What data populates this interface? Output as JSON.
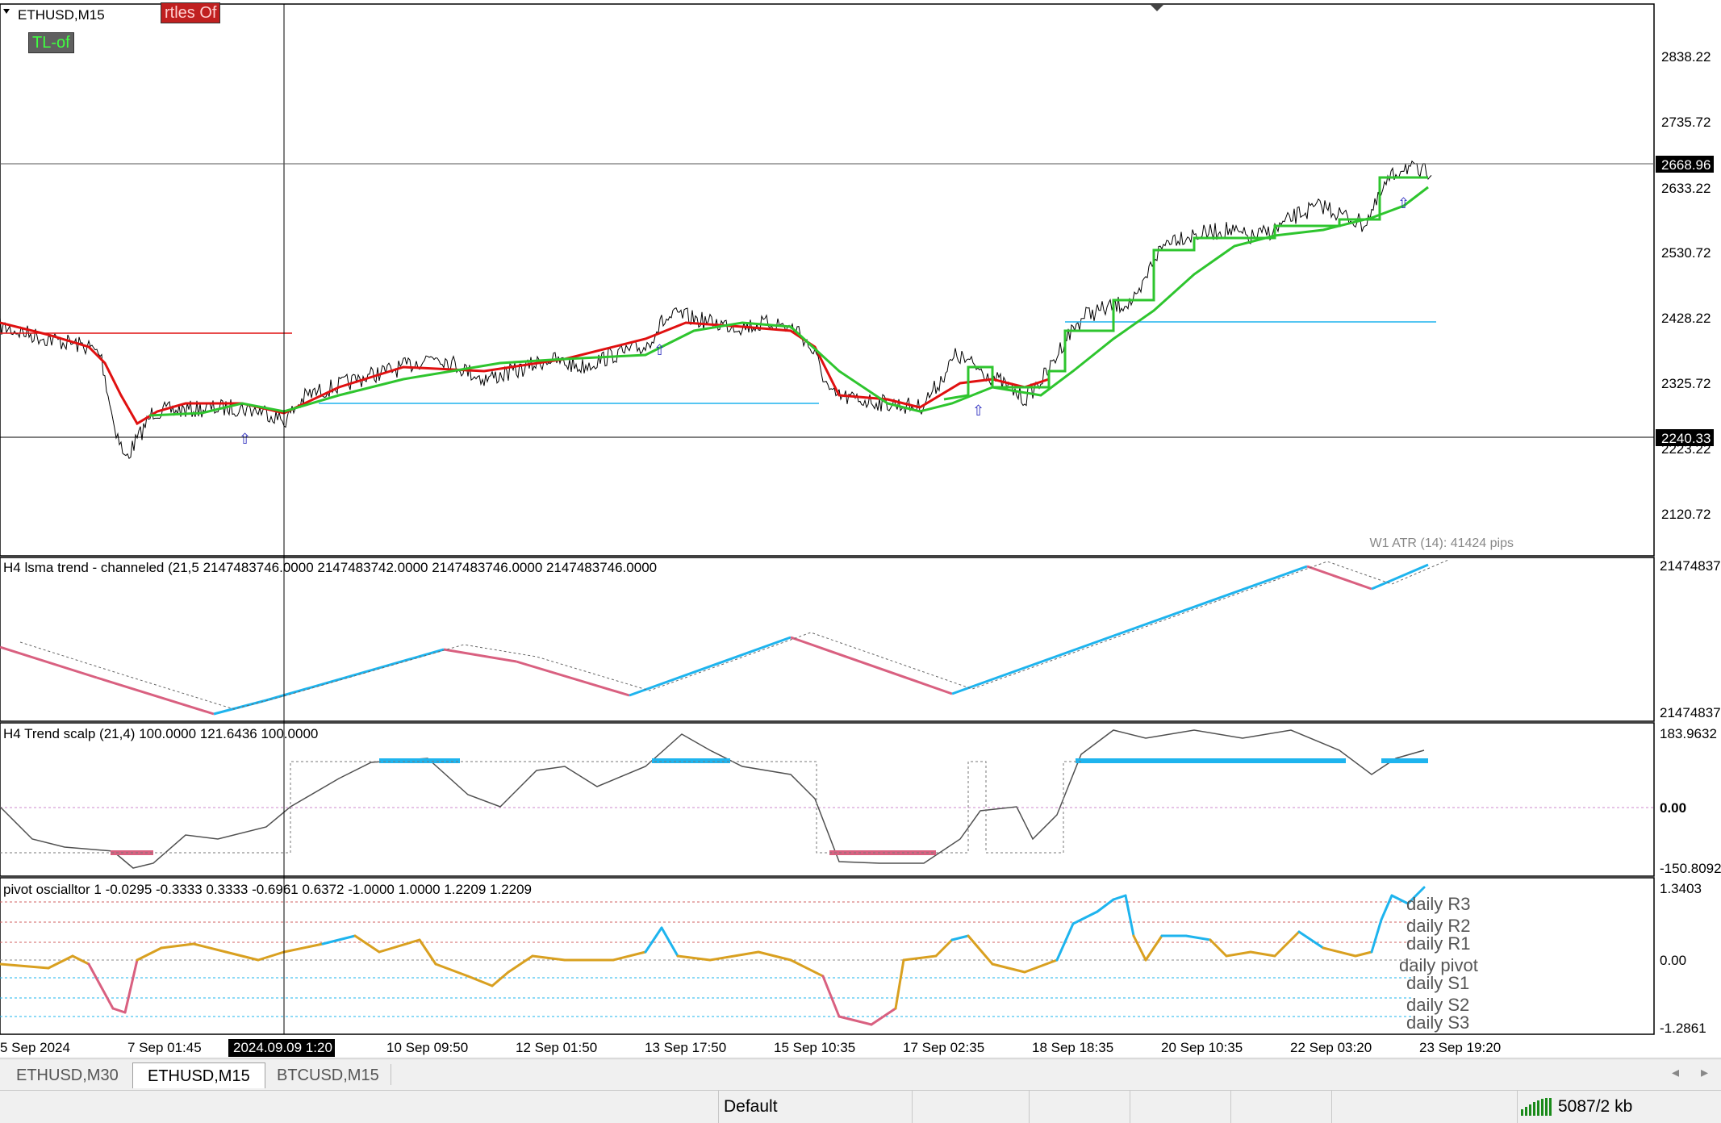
{
  "window": {
    "symbol_title": "ETHUSD,M15"
  },
  "buttons": {
    "turtles": "rtles Of",
    "tl": "TL-of"
  },
  "colors": {
    "bull": "#2ec52e",
    "bear": "#e01010",
    "cyan": "#1eb4ee",
    "pink": "#d96080",
    "gold": "#d9a020",
    "grey": "#505050"
  },
  "main_panel": {
    "price_ticks": [
      "2838.22",
      "2735.72",
      "2633.22",
      "2530.72",
      "2428.22",
      "2325.72",
      "2223.22",
      "2120.72"
    ],
    "current_price": "2668.96",
    "crosshair_price": "2240.33",
    "atr_label": "W1 ATR (14): 41424 pips"
  },
  "lsma_panel": {
    "title": "H4 lsma trend - channeled (21,5 2147483746.0000 2147483742.0000 2147483746.0000 2147483746.0000",
    "scale_top": "21474837",
    "scale_bottom": "21474837"
  },
  "scalp_panel": {
    "title": "H4 Trend scalp (21,4) 100.0000 121.6436 100.0000",
    "scale_top": "183.9632",
    "scale_mid": "0.00",
    "scale_bottom": "-150.8092"
  },
  "pivot_panel": {
    "title": "pivot oscialltor 1 -0.0295 -0.3333 0.3333 -0.6961 0.6372 -1.0000 1.0000 1.2209 1.2209",
    "scale_top": "1.3403",
    "scale_mid": "0.00",
    "scale_bottom": "-1.2861",
    "levels": [
      "daily R3",
      "daily R2",
      "daily R1",
      "daily pivot",
      "daily S1",
      "daily S2",
      "daily S3"
    ]
  },
  "time_axis": {
    "labels": [
      "5 Sep 2024",
      "7 Sep 01:45",
      "10 Sep 09:50",
      "12 Sep 01:50",
      "13 Sep 17:50",
      "15 Sep 10:35",
      "17 Sep 02:35",
      "18 Sep 18:35",
      "20 Sep 10:35",
      "22 Sep 03:20",
      "23 Sep 19:20"
    ],
    "crosshair_time": "2024.09.09 1:20"
  },
  "tabs": [
    {
      "label": "ETHUSD,M30",
      "active": false
    },
    {
      "label": "ETHUSD,M15",
      "active": true
    },
    {
      "label": "BTCUSD,M15",
      "active": false
    }
  ],
  "status": {
    "profile": "Default",
    "traffic": "5087/2 kb"
  }
}
